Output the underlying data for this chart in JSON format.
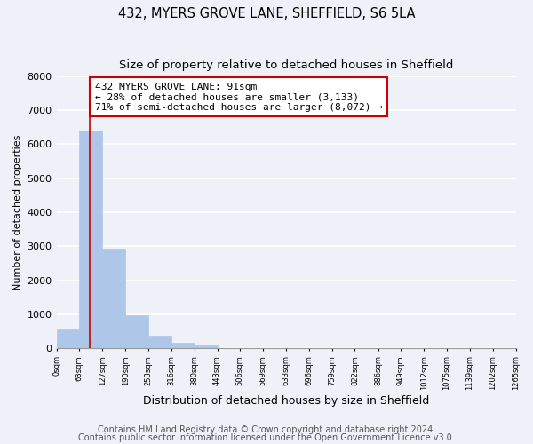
{
  "title": "432, MYERS GROVE LANE, SHEFFIELD, S6 5LA",
  "subtitle": "Size of property relative to detached houses in Sheffield",
  "xlabel": "Distribution of detached houses by size in Sheffield",
  "ylabel": "Number of detached properties",
  "bar_edges": [
    0,
    63,
    127,
    190,
    253,
    316,
    380,
    443,
    506,
    569,
    633,
    696,
    759,
    822,
    886,
    949,
    1012,
    1075,
    1139,
    1202,
    1265
  ],
  "bar_heights": [
    560,
    6400,
    2930,
    970,
    370,
    160,
    80,
    0,
    0,
    0,
    0,
    0,
    0,
    0,
    0,
    0,
    0,
    0,
    0,
    0
  ],
  "bar_color": "#aec6e8",
  "bar_edgecolor": "#aec6e8",
  "property_line_x": 91,
  "property_line_color": "#cc0000",
  "annotation_text": "432 MYERS GROVE LANE: 91sqm\n← 28% of detached houses are smaller (3,133)\n71% of semi-detached houses are larger (8,072) →",
  "annotation_box_color": "#cc0000",
  "ylim": [
    0,
    8000
  ],
  "xtick_labels": [
    "0sqm",
    "63sqm",
    "127sqm",
    "190sqm",
    "253sqm",
    "316sqm",
    "380sqm",
    "443sqm",
    "506sqm",
    "569sqm",
    "633sqm",
    "696sqm",
    "759sqm",
    "822sqm",
    "886sqm",
    "949sqm",
    "1012sqm",
    "1075sqm",
    "1139sqm",
    "1202sqm",
    "1265sqm"
  ],
  "footer_line1": "Contains HM Land Registry data © Crown copyright and database right 2024.",
  "footer_line2": "Contains public sector information licensed under the Open Government Licence v3.0.",
  "background_color": "#eef2f8",
  "grid_color": "#ffffff",
  "title_fontsize": 10.5,
  "subtitle_fontsize": 9.5,
  "annotation_fontsize": 8,
  "ylabel_fontsize": 8,
  "xlabel_fontsize": 9,
  "footer_fontsize": 7
}
